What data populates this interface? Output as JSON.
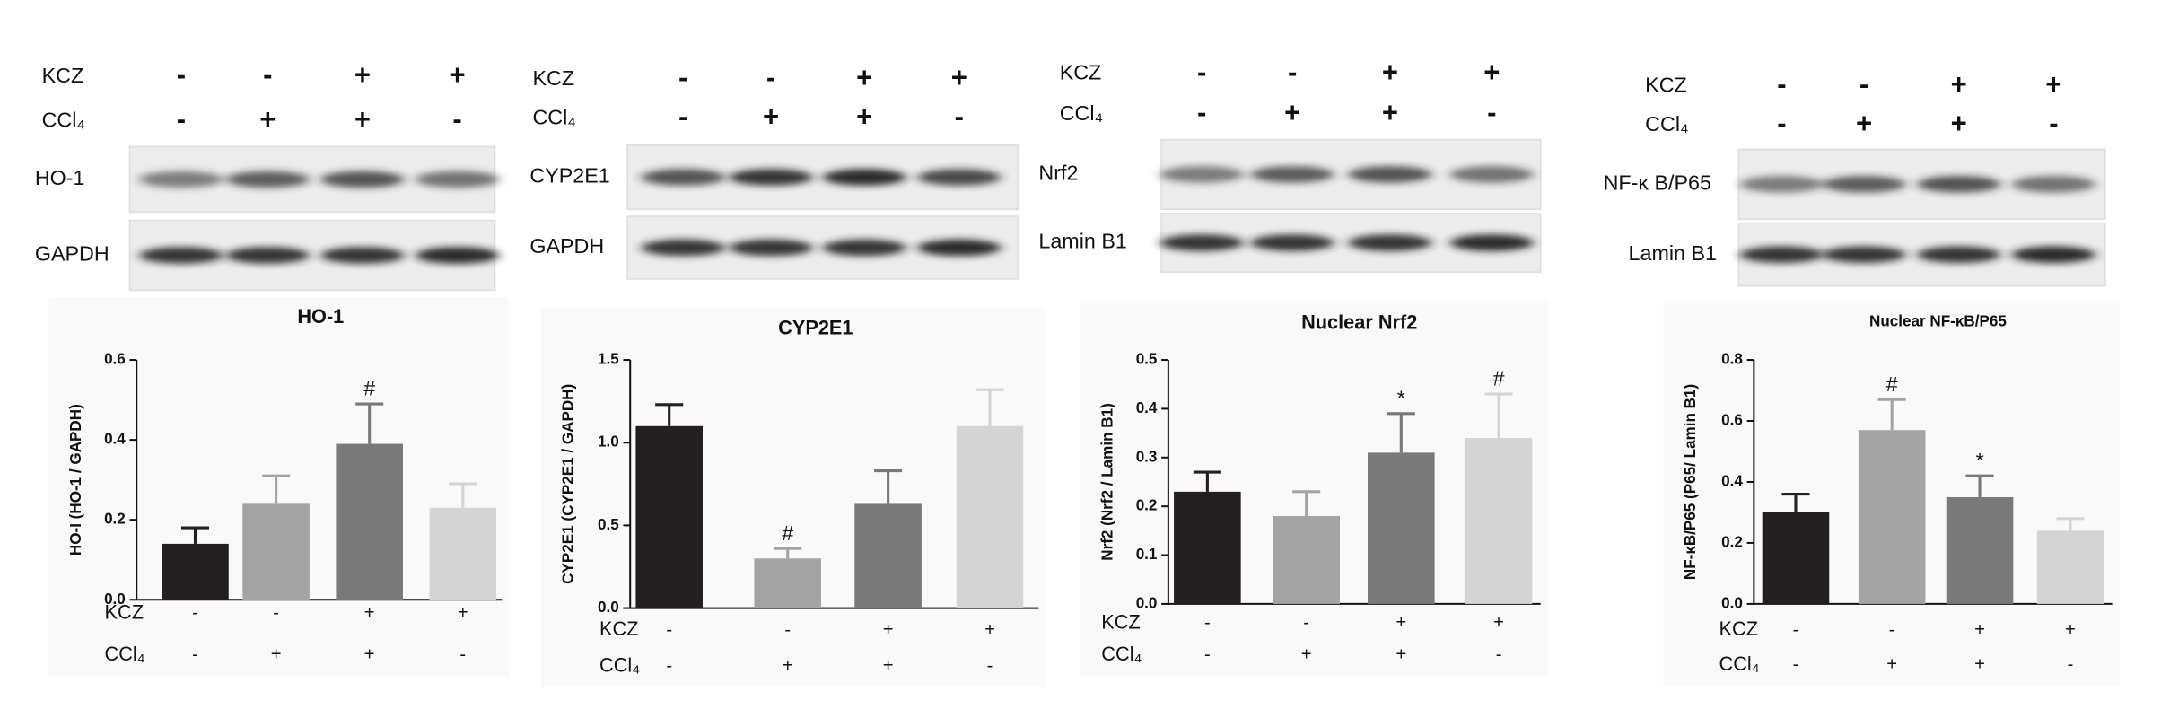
{
  "blots": [
    {
      "treatments": [
        {
          "name": "KCZ",
          "signs": [
            "-",
            "-",
            "+",
            "+"
          ]
        },
        {
          "name": "CCl₄",
          "signs": [
            "-",
            "+",
            "+",
            "-"
          ]
        }
      ],
      "bands": [
        "HO-1",
        "GAPDH"
      ]
    },
    {
      "treatments": [
        {
          "name": "KCZ",
          "signs": [
            "-",
            "-",
            "+",
            "+"
          ]
        },
        {
          "name": "CCl₄",
          "signs": [
            "-",
            "+",
            "+",
            "-"
          ]
        }
      ],
      "bands": [
        "CYP2E1",
        "GAPDH"
      ]
    },
    {
      "treatments": [
        {
          "name": "KCZ",
          "signs": [
            "-",
            "-",
            "+",
            "+"
          ]
        },
        {
          "name": "CCl₄",
          "signs": [
            "-",
            "+",
            "+",
            "-"
          ]
        }
      ],
      "bands": [
        "Nrf2",
        "Lamin B1"
      ]
    },
    {
      "treatments": [
        {
          "name": "KCZ",
          "signs": [
            "-",
            "-",
            "+",
            "+"
          ]
        },
        {
          "name": "CCl₄",
          "signs": [
            "-",
            "+",
            "+",
            "-"
          ]
        }
      ],
      "bands": [
        "NF-κ B/P65",
        "Lamin B1"
      ]
    }
  ],
  "chart_data": [
    {
      "type": "bar",
      "title": "HO-1",
      "y_label": "HO-I  (HO-1 / GAPDH)",
      "values": [
        0.14,
        0.24,
        0.39,
        0.23
      ],
      "errors": [
        0.04,
        0.07,
        0.1,
        0.06
      ],
      "colors": [
        "#231f20",
        "#a3a3a3",
        "#797979",
        "#d4d4d4"
      ],
      "markers": [
        null,
        null,
        "#",
        null
      ],
      "ylim": [
        0,
        0.6
      ],
      "yticks": [
        {
          "value": 0,
          "label": "0.0"
        },
        0.2,
        0.4,
        0.6
      ],
      "treatments": [
        {
          "name": "KCZ",
          "signs": [
            "-",
            "-",
            "+",
            "+"
          ]
        },
        {
          "name": "CCl₄",
          "signs": [
            "-",
            "+",
            "+",
            "-"
          ]
        }
      ]
    },
    {
      "type": "bar",
      "title": "CYP2E1",
      "y_label": "CYP2E1 (CYP2E1 / GAPDH)",
      "values": [
        1.1,
        0.3,
        0.63,
        1.1
      ],
      "errors": [
        0.13,
        0.06,
        0.2,
        0.22
      ],
      "colors": [
        "#231f20",
        "#a3a3a3",
        "#797979",
        "#d4d4d4"
      ],
      "markers": [
        null,
        "#",
        null,
        null
      ],
      "ylim": [
        0,
        1.5
      ],
      "yticks": [
        {
          "value": 0,
          "label": "0.0"
        },
        0.5,
        {
          "value": 1,
          "label": "1.0"
        },
        1.5
      ],
      "treatments": [
        {
          "name": "KCZ",
          "signs": [
            "-",
            "-",
            "+",
            "+"
          ]
        },
        {
          "name": "CCl₄",
          "signs": [
            "-",
            "+",
            "+",
            "-"
          ]
        }
      ]
    },
    {
      "type": "bar",
      "title": "Nuclear Nrf2",
      "y_label": "Nrf2 (Nrf2 / Lamin B1)",
      "values": [
        0.23,
        0.18,
        0.31,
        0.34
      ],
      "errors": [
        0.04,
        0.05,
        0.08,
        0.09
      ],
      "colors": [
        "#231f20",
        "#a3a3a3",
        "#797979",
        "#d4d4d4"
      ],
      "markers": [
        null,
        null,
        "*",
        "#"
      ],
      "ylim": [
        0,
        0.5
      ],
      "yticks": [
        {
          "value": 0,
          "label": "0.0"
        },
        0.1,
        0.2,
        0.3,
        0.4,
        0.5
      ],
      "treatments": [
        {
          "name": "KCZ",
          "signs": [
            "-",
            "-",
            "+",
            "+"
          ]
        },
        {
          "name": "CCl₄",
          "signs": [
            "-",
            "+",
            "+",
            "-"
          ]
        }
      ]
    },
    {
      "type": "bar",
      "title": "Nuclear NF-κB/P65",
      "y_label": "NF-κB/P65  (P65/ Lamin B1)",
      "values": [
        0.3,
        0.57,
        0.35,
        0.24
      ],
      "errors": [
        0.06,
        0.1,
        0.07,
        0.04
      ],
      "colors": [
        "#231f20",
        "#a3a3a3",
        "#797979",
        "#d4d4d4"
      ],
      "markers": [
        null,
        "#",
        "*",
        null
      ],
      "ylim": [
        0,
        0.8
      ],
      "yticks": [
        {
          "value": 0,
          "label": "0.0"
        },
        0.2,
        0.4,
        0.6,
        0.8
      ],
      "treatments": [
        {
          "name": "KCZ",
          "signs": [
            "-",
            "-",
            "+",
            "+"
          ]
        },
        {
          "name": "CCl₄",
          "signs": [
            "-",
            "+",
            "+",
            "-"
          ]
        }
      ]
    }
  ]
}
